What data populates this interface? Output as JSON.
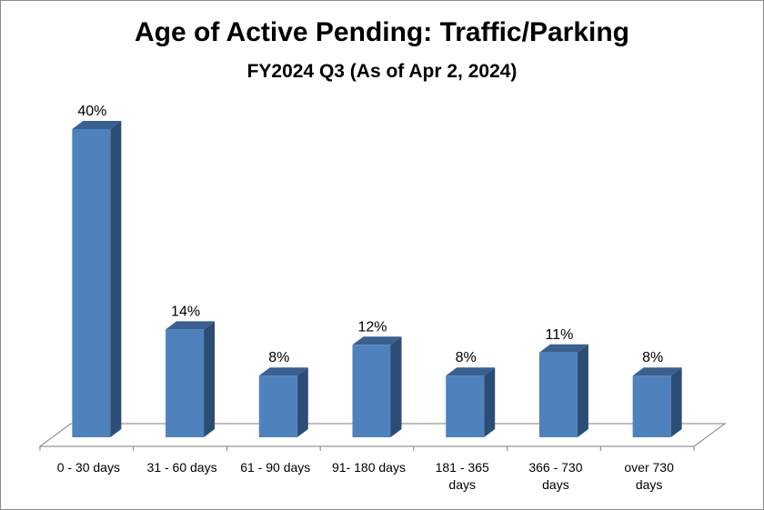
{
  "chart_data": {
    "type": "bar",
    "title": "Age of Active Pending: Traffic/Parking",
    "subtitle": "FY2024 Q3 (As of Apr 2, 2024)",
    "categories": [
      "0 - 30 days",
      "31 - 60 days",
      "61 - 90 days",
      "91- 180 days",
      "181 - 365 days",
      "366 - 730 days",
      "over 730 days"
    ],
    "category_lines": [
      [
        "0 - 30 days"
      ],
      [
        "31 - 60 days"
      ],
      [
        "61 - 90 days"
      ],
      [
        "91- 180 days"
      ],
      [
        "181 - 365",
        "days"
      ],
      [
        "366 - 730",
        "days"
      ],
      [
        "over 730",
        "days"
      ]
    ],
    "values": [
      40,
      14,
      8,
      12,
      8,
      11,
      8
    ],
    "value_labels": [
      "40%",
      "14%",
      "8%",
      "12%",
      "8%",
      "11%",
      "8%"
    ],
    "ylim": [
      0,
      45
    ],
    "xlabel": "",
    "ylabel": "",
    "grid": false,
    "style": "3d-column",
    "colors": {
      "front": "#4f81bd",
      "side": "#2c4d75",
      "top": "#3a6090",
      "floor": "#7f7f7f"
    }
  }
}
